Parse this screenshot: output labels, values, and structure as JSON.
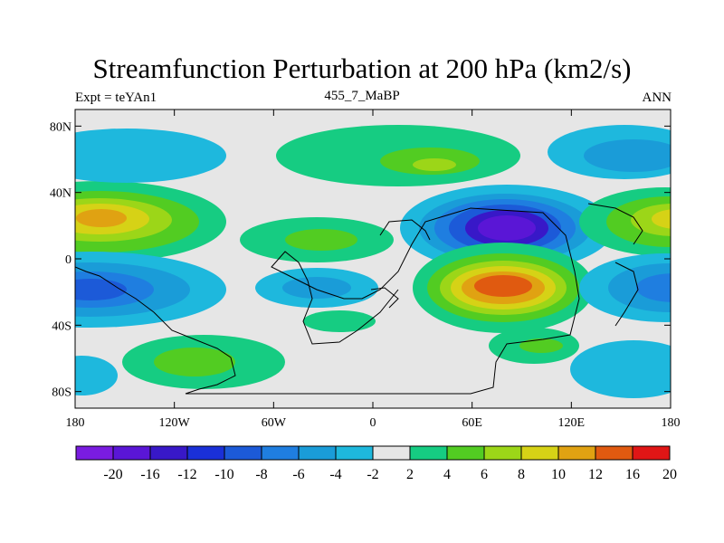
{
  "chart_data": {
    "type": "contour-map",
    "title": "Streamfunction Perturbation at 200 hPa (km2/s)",
    "left_label": "Expt = teYAn1",
    "center_label": "455_7_MaBP",
    "right_label": "ANN",
    "x_ticks": [
      "180",
      "120W",
      "60W",
      "0",
      "60E",
      "120E",
      "180"
    ],
    "y_ticks": [
      "80N",
      "40N",
      "0",
      "40S",
      "80S"
    ],
    "xlim": [
      -180,
      180
    ],
    "ylim": [
      -90,
      90
    ],
    "colorbar_labels": [
      "-20",
      "-16",
      "-12",
      "-10",
      "-8",
      "-6",
      "-4",
      "-2",
      "2",
      "4",
      "6",
      "8",
      "10",
      "12",
      "16",
      "20"
    ],
    "colorbar_colors": [
      "#7a1ce0",
      "#5a16d6",
      "#3818c8",
      "#1a30d8",
      "#1c5ad8",
      "#1f7ee0",
      "#1a9cd8",
      "#1eb8dd",
      "#e6e6e6",
      "#16cc82",
      "#52cc22",
      "#9cd618",
      "#d6d216",
      "#e0a212",
      "#e05a10",
      "#e01616"
    ]
  }
}
